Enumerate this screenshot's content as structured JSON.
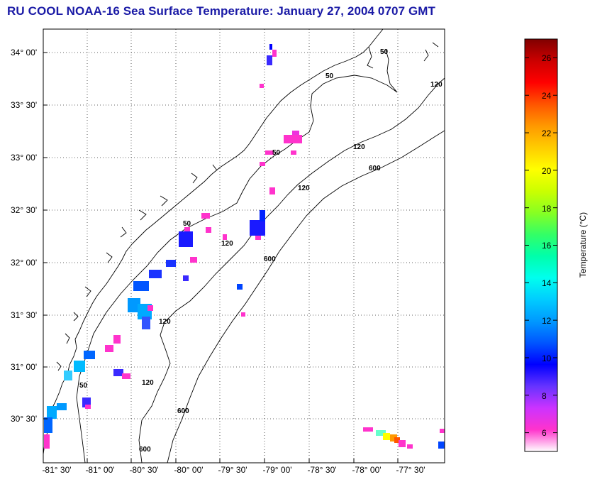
{
  "title": "RU COOL  NOAA-16  Sea Surface Temperature:  January 27, 2004 0707 GMT",
  "map": {
    "lon_ticks": [
      "-81° 30'",
      "-81° 00'",
      "-80° 30'",
      "-80° 00'",
      "-79° 30'",
      "-79° 00'",
      "-78° 30'",
      "-78° 00'",
      "-77° 30'"
    ],
    "lat_ticks": [
      "34° 00'",
      "33° 30'",
      "33° 00'",
      "32° 30'",
      "32° 00'",
      "31° 30'",
      "31° 00'",
      "30° 30'"
    ],
    "isobath_labels": [
      "50",
      "50",
      "50",
      "50",
      "50",
      "120",
      "120",
      "120",
      "120",
      "120",
      "120",
      "600",
      "600",
      "600",
      "600"
    ],
    "grid": "dotted"
  },
  "colorbar": {
    "label": "Temperature (°C)",
    "ticks": [
      "26",
      "24",
      "22",
      "20",
      "18",
      "16",
      "14",
      "12",
      "10",
      "8",
      "6"
    ],
    "range": [
      5,
      27
    ],
    "colors": [
      "#ffffff",
      "#ff33cc",
      "#cc33ff",
      "#6633ff",
      "#0000ff",
      "#0055ff",
      "#0099ff",
      "#00ccff",
      "#00ffee",
      "#00ffaa",
      "#33ff66",
      "#88ff22",
      "#ccff00",
      "#ffff00",
      "#ffcc00",
      "#ff9900",
      "#ff5500",
      "#ff0000",
      "#cc0000",
      "#800000"
    ]
  }
}
